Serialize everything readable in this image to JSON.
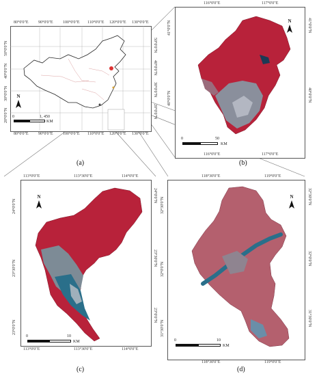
{
  "panel_a": {
    "caption": "(a)",
    "top_ticks": [
      "80°0'0\"E",
      "90°0'0\"E",
      "100°0'0\"E",
      "110°0'0\"E",
      "120°0'0\"E",
      "130°0'0\"E"
    ],
    "bottom_ticks": [
      "80°0'0\"E",
      "90°0'0\"E",
      "100°0'0\"E",
      "110°0'0\"E",
      "120°0'0\"E",
      "130°0'0\"E"
    ],
    "left_ticks": [
      "50°0'0\"N",
      "40°0'0\"N",
      "30°0'0\"N",
      "20°0'0\"N"
    ],
    "right_ticks": [
      "50°0'0\"N",
      "40°0'0\"N",
      "30°0'0\"N",
      "20°0'0\"N"
    ],
    "north": "N",
    "scale_labels": [
      "0",
      "1, 450"
    ],
    "scale_unit": "KM"
  },
  "panel_b": {
    "caption": "(b)",
    "top_ticks": [
      "116°0'0\"E",
      "117°0'0\"E"
    ],
    "bottom_ticks": [
      "116°0'0\"E",
      "117°0'0\"E"
    ],
    "left_ticks": [
      "41°0'0\"N",
      "40°0'0\"N"
    ],
    "right_ticks": [
      "41°0'0\"N",
      "40°0'0\"N"
    ],
    "north": "N",
    "scale_labels": [
      "0",
      "50"
    ],
    "scale_unit": "KM"
  },
  "panel_c": {
    "caption": "(c)",
    "top_ticks": [
      "113°0'0\"E",
      "113°30'0\"E",
      "114°0'0\"E"
    ],
    "bottom_ticks": [
      "113°0'0\"E",
      "113°30'0\"E",
      "114°0'0\"E"
    ],
    "left_ticks": [
      "24°0'0\"N",
      "23°30'0\"N",
      "23°0'0\"N"
    ],
    "right_ticks": [
      "24°0'0\"N",
      "23°30'0\"N",
      "23°0'0\"N"
    ],
    "north": "N",
    "scale_labels": [
      "0",
      "10"
    ],
    "scale_unit": "KM"
  },
  "panel_d": {
    "caption": "(d)",
    "top_ticks": [
      "118°30'0\"E",
      "119°0'0\"E"
    ],
    "bottom_ticks": [
      "118°30'0\"E",
      "119°0'0\"E"
    ],
    "left_ticks": [
      "32°30'0\"N",
      "32°0'0\"N",
      "31°30'0\"N"
    ],
    "right_ticks": [
      "32°30'0\"N",
      "32°0'0\"N",
      "31°30'0\"N"
    ],
    "north": "N",
    "scale_labels": [
      "0",
      "10"
    ],
    "scale_unit": "KM"
  },
  "colors": {
    "vegetation": "#b8223a",
    "urban": "#8a8f9c",
    "water": "#2a6f8a",
    "frame": "#555555"
  }
}
